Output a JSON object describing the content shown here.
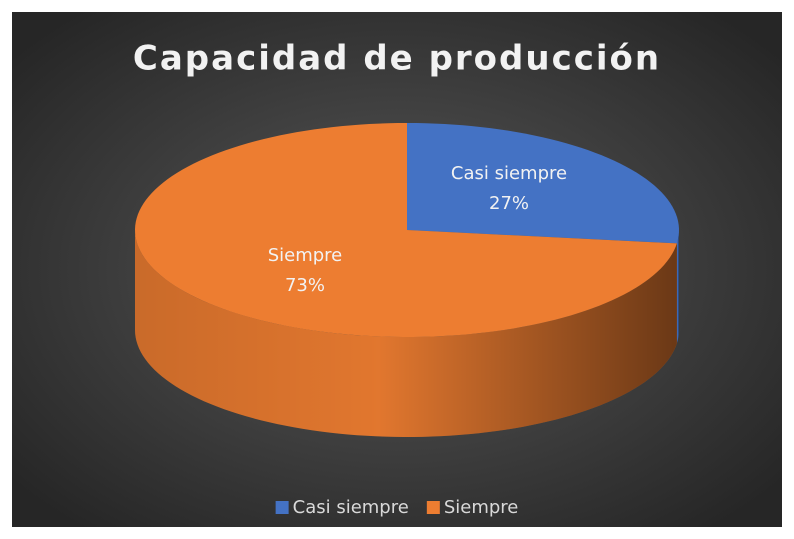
{
  "chart_data": {
    "type": "pie",
    "title": "Capacidad de producción",
    "categories": [
      "Casi siempre",
      "Siempre"
    ],
    "values": [
      27,
      73
    ],
    "value_labels": [
      "27%",
      "73%"
    ],
    "colors": [
      "#4472c4",
      "#ed7d31"
    ],
    "legend": "bottom"
  }
}
